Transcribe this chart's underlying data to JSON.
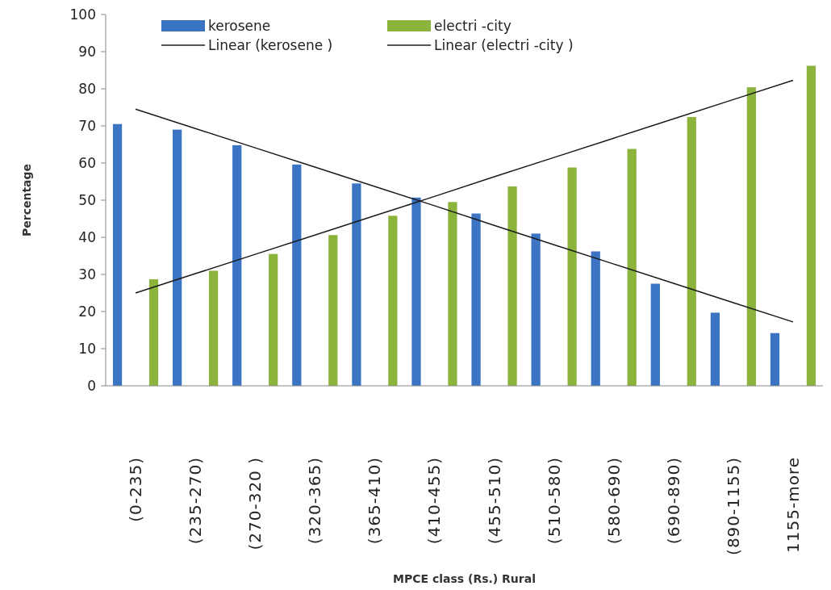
{
  "chart_data": {
    "type": "bar",
    "xlabel": "MPCE class  (Rs.) Rural",
    "ylabel": "Percentage",
    "categories": [
      "(0-235)",
      "(235-270)",
      "(270-320  )",
      "(320-365)",
      "(365-410)",
      "(410-455)",
      "(455-510)",
      "(510-580)",
      "(580-690)",
      "(690-890)",
      "(890-1155)",
      "1155-more"
    ],
    "series": [
      {
        "name": "kerosene",
        "color": "#3a74c2",
        "values": [
          70.5,
          69,
          64.8,
          59.6,
          54.5,
          50.7,
          46.4,
          41,
          36.2,
          27.5,
          19.7,
          14.2
        ]
      },
      {
        "name": "electri -city",
        "color": "#8cb43c",
        "values": [
          28.7,
          31,
          35.5,
          40.6,
          45.8,
          49.5,
          53.7,
          58.8,
          63.8,
          72.4,
          80.4,
          86.2
        ]
      },
      {
        "name": "Linear (kerosene )",
        "type": "line",
        "color": "#1a1a1a",
        "values": [
          74.5,
          69.3,
          64.1,
          58.9,
          53.7,
          48.5,
          43.2,
          38,
          32.8,
          27.6,
          22.4,
          17.2
        ]
      },
      {
        "name": "Linear (electri -city )",
        "type": "line",
        "color": "#1a1a1a",
        "values": [
          25,
          30.2,
          35.4,
          40.6,
          45.8,
          51,
          56.3,
          61.5,
          66.7,
          71.9,
          77.1,
          82.3
        ]
      }
    ],
    "ylim": [
      0,
      100
    ],
    "yticks": [
      0,
      10,
      20,
      30,
      40,
      50,
      60,
      70,
      80,
      90,
      100
    ],
    "legend": "top",
    "grid": false
  }
}
